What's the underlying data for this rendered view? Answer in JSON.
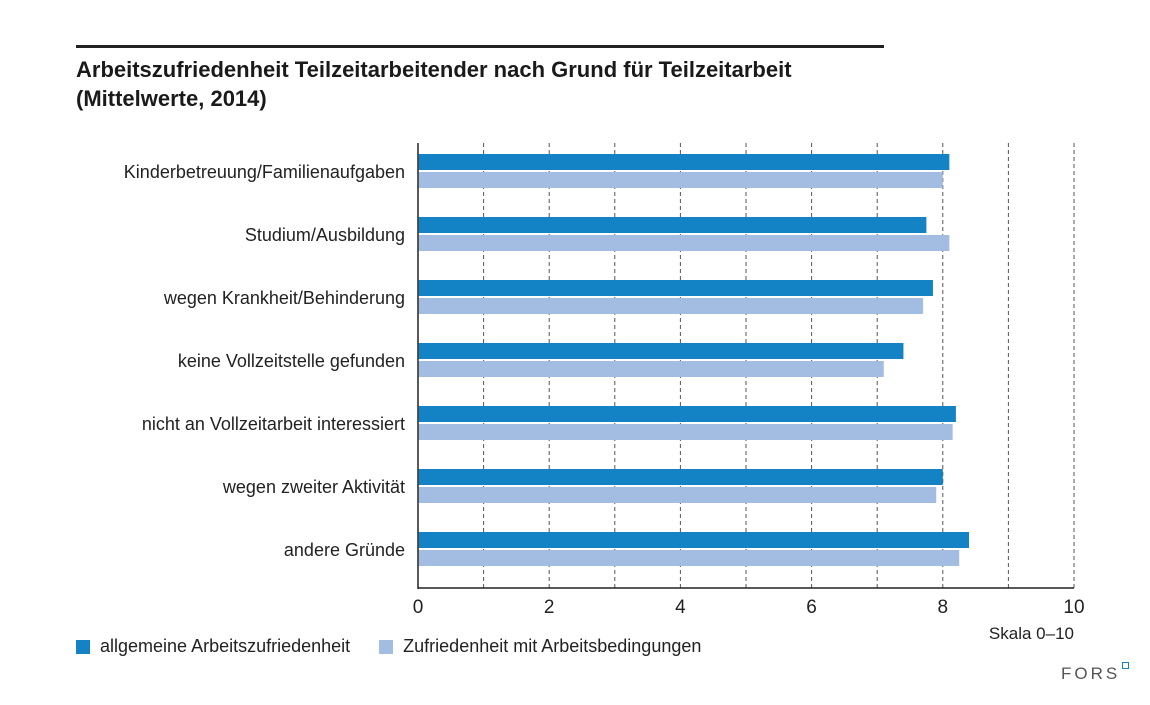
{
  "title_line1": "Arbeitszufriedenheit Teilzeitarbeitender nach Grund für Teilzeitarbeit",
  "title_line2": "(Mittelwerte, 2014)",
  "scale_note": "Skala 0–10",
  "logo_text": "FORS",
  "colors": {
    "series1": "#1383c6",
    "series2": "#a3bde2",
    "axis": "#222222",
    "grid": "#555555"
  },
  "chart_data": {
    "type": "bar",
    "orientation": "horizontal",
    "categories": [
      "Kinderbetreuung/Familienaufgaben",
      "Studium/Ausbildung",
      "wegen Krankheit/Behinderung",
      "keine Vollzeitstelle gefunden",
      "nicht an Vollzeitarbeit interessiert",
      "wegen zweiter Aktivität",
      "andere Gründe"
    ],
    "series": [
      {
        "name": "allgemeine Arbeitszufriedenheit",
        "values": [
          8.1,
          7.75,
          7.85,
          7.4,
          8.2,
          8.0,
          8.4
        ]
      },
      {
        "name": "Zufriedenheit mit Arbeitsbedingungen",
        "values": [
          8.0,
          8.1,
          7.7,
          7.1,
          8.15,
          7.9,
          8.25
        ]
      }
    ],
    "xlim": [
      0,
      10
    ],
    "xticks": [
      "0",
      "2",
      "4",
      "6",
      "8",
      "10"
    ],
    "grid": "dashed vertical",
    "legend": "bottom"
  }
}
